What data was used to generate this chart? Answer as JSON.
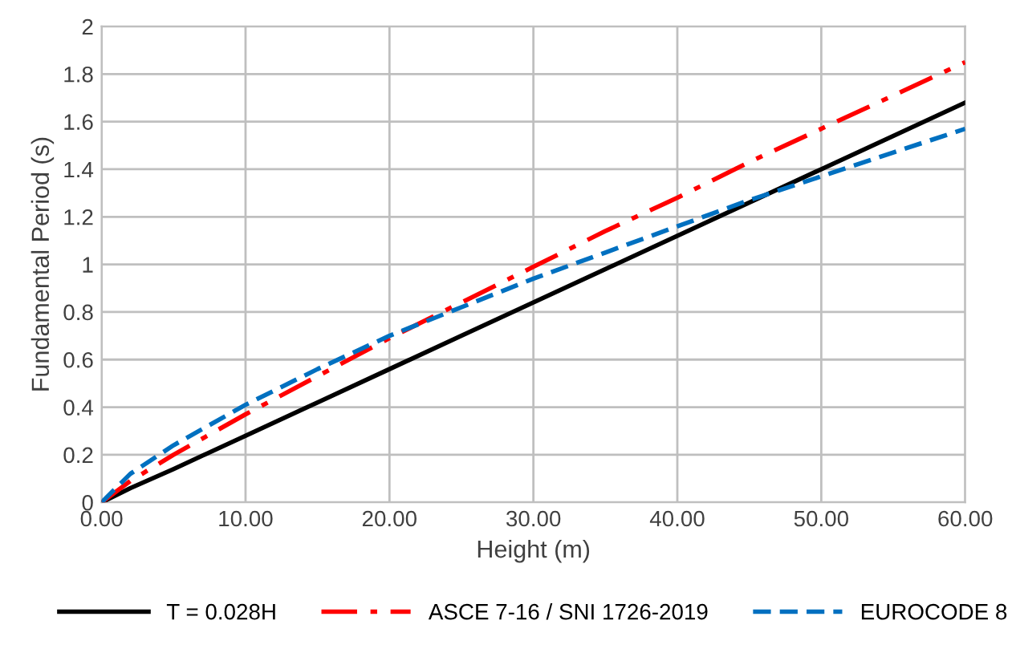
{
  "chart_data": {
    "type": "line",
    "xlabel": "Height (m)",
    "ylabel": "Fundamental Period (s)",
    "xlim": [
      0,
      60
    ],
    "ylim": [
      0,
      2
    ],
    "xticks": [
      {
        "value": 0,
        "label": "0.00"
      },
      {
        "value": 10,
        "label": "10.00"
      },
      {
        "value": 20,
        "label": "20.00"
      },
      {
        "value": 30,
        "label": "30.00"
      },
      {
        "value": 40,
        "label": "40.00"
      },
      {
        "value": 50,
        "label": "50.00"
      },
      {
        "value": 60,
        "label": "60.00"
      }
    ],
    "yticks": [
      0,
      0.2,
      0.4,
      0.6,
      0.8,
      1,
      1.2,
      1.4,
      1.6,
      1.8,
      2
    ],
    "grid": true,
    "legend": "bottom",
    "marker": "none",
    "series": [
      {
        "name": "T = 0.028H",
        "color": "#000000",
        "line_style": "solid",
        "x": [
          0,
          2,
          5,
          10,
          15,
          20,
          25,
          30,
          35,
          40,
          45,
          50,
          55,
          60
        ],
        "values": [
          0,
          0.06,
          0.14,
          0.28,
          0.42,
          0.56,
          0.7,
          0.84,
          0.98,
          1.12,
          1.26,
          1.4,
          1.54,
          1.68
        ]
      },
      {
        "name": "ASCE 7-16 / SNI 1726-2019",
        "color": "#ff0000",
        "line_style": "dashdot",
        "x": [
          0,
          2,
          5,
          10,
          15,
          20,
          25,
          30,
          35,
          40,
          45,
          50,
          55,
          60
        ],
        "values": [
          0,
          0.09,
          0.2,
          0.37,
          0.53,
          0.69,
          0.84,
          0.99,
          1.14,
          1.28,
          1.43,
          1.57,
          1.71,
          1.85
        ]
      },
      {
        "name": "EUROCODE 8",
        "color": "#0070c0",
        "line_style": "dashed",
        "x": [
          0,
          2,
          5,
          10,
          15,
          20,
          25,
          30,
          35,
          40,
          45,
          50,
          55,
          60
        ],
        "values": [
          0,
          0.12,
          0.24,
          0.41,
          0.56,
          0.7,
          0.82,
          0.94,
          1.05,
          1.16,
          1.27,
          1.37,
          1.47,
          1.57
        ]
      }
    ]
  }
}
